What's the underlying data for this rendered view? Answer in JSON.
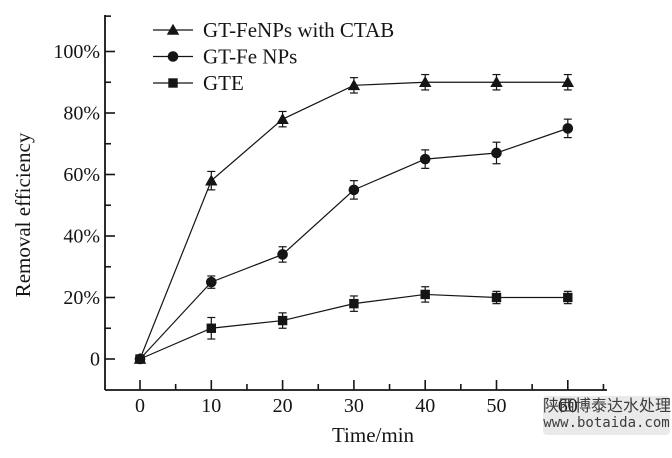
{
  "page": {
    "background": "#ffffff"
  },
  "watermark": {
    "line1": "陕西博泰达水处理",
    "line2": "www.botaida.com",
    "bg_color": "#e8e8e8",
    "text_color": "#3d3d3d"
  },
  "chart_data": {
    "type": "line",
    "title": "",
    "xlabel": "Time/min",
    "ylabel": "Removal efficiency",
    "x": [
      0,
      10,
      20,
      30,
      40,
      50,
      60
    ],
    "x_tick_labels": [
      "0",
      "10",
      "20",
      "30",
      "40",
      "50",
      "60"
    ],
    "x_minor_ticks": [
      5,
      15,
      25,
      35,
      45,
      55,
      65
    ],
    "y_major_ticks": [
      0,
      20,
      40,
      60,
      80,
      100
    ],
    "y_tick_labels": [
      "0",
      "20%",
      "40%",
      "60%",
      "80%",
      "100%"
    ],
    "y_minor_ticks": [
      10,
      30,
      50,
      70,
      90,
      111.5
    ],
    "xlim": [
      -5,
      65.5
    ],
    "ylim": [
      -10,
      112
    ],
    "grid": false,
    "legend_position": "top-left-inside",
    "line_color": "#151515",
    "series": [
      {
        "name": "GT-FeNPs with CTAB",
        "marker": "triangle",
        "values": [
          0,
          58,
          78,
          89,
          90,
          90,
          90
        ],
        "errors": [
          0,
          3,
          2.5,
          2.5,
          2.5,
          2.5,
          2.5
        ]
      },
      {
        "name": "GT-Fe NPs",
        "marker": "circle",
        "values": [
          0,
          25,
          34,
          55,
          65,
          67,
          75
        ],
        "errors": [
          0,
          2,
          2.5,
          3,
          3,
          3.5,
          3
        ]
      },
      {
        "name": "GTE",
        "marker": "square",
        "values": [
          0,
          10,
          12.5,
          18,
          21,
          20,
          20
        ],
        "errors": [
          0,
          3.5,
          2.5,
          2.5,
          2.5,
          2,
          2
        ]
      }
    ]
  }
}
